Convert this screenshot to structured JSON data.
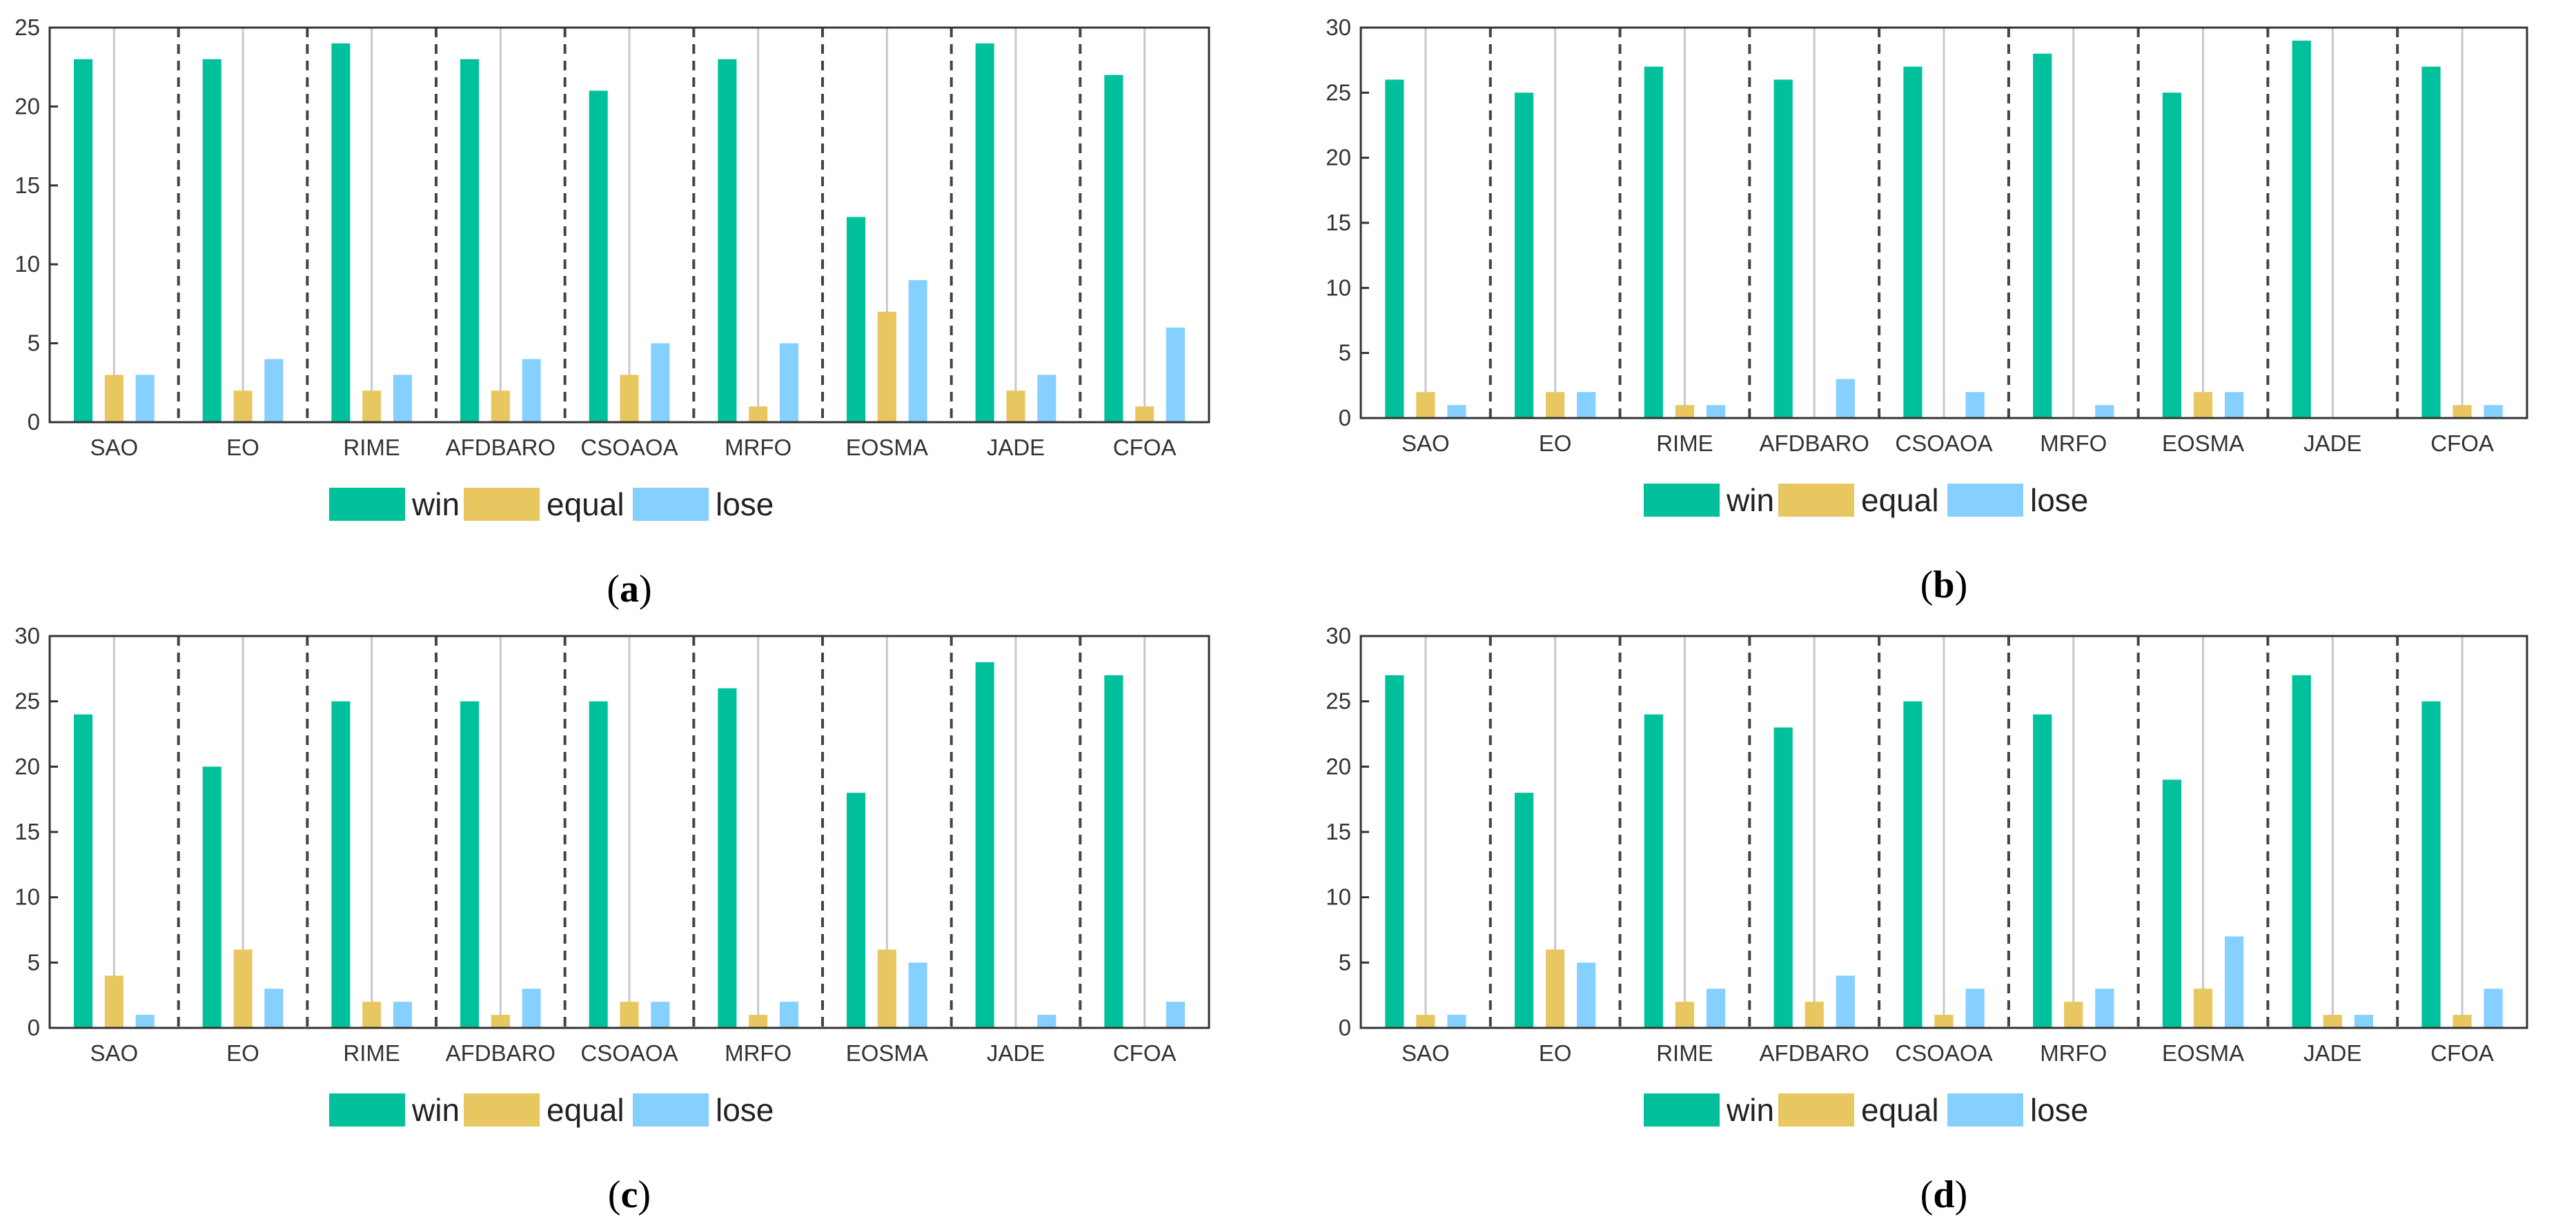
{
  "colors": {
    "win": "#00c19b",
    "equal": "#e8c761",
    "lose": "#85d0ff",
    "axis": "#333333",
    "divider": "#444444",
    "grid": "#c8c8c8"
  },
  "legend": {
    "win": "win",
    "equal": "equal",
    "lose": "lose"
  },
  "chart_data": [
    {
      "type": "bar",
      "panel_label": "a",
      "categories": [
        "SAO",
        "EO",
        "RIME",
        "AFDBARO",
        "CSOAOA",
        "MRFO",
        "EOSMA",
        "JADE",
        "CFOA"
      ],
      "series": [
        {
          "name": "win",
          "values": [
            23,
            23,
            24,
            23,
            21,
            23,
            13,
            24,
            22
          ]
        },
        {
          "name": "equal",
          "values": [
            3,
            2,
            2,
            2,
            3,
            1,
            7,
            2,
            1
          ]
        },
        {
          "name": "lose",
          "values": [
            3,
            4,
            3,
            4,
            5,
            5,
            9,
            3,
            6
          ]
        }
      ],
      "ylim": [
        0,
        25
      ],
      "yticks": [
        0,
        5,
        10,
        15,
        20,
        25
      ],
      "legend_position": "bottom-center"
    },
    {
      "type": "bar",
      "panel_label": "b",
      "categories": [
        "SAO",
        "EO",
        "RIME",
        "AFDBARO",
        "CSOAOA",
        "MRFO",
        "EOSMA",
        "JADE",
        "CFOA"
      ],
      "series": [
        {
          "name": "win",
          "values": [
            26,
            25,
            27,
            26,
            27,
            28,
            25,
            29,
            27
          ]
        },
        {
          "name": "equal",
          "values": [
            2,
            2,
            1,
            0,
            0,
            0,
            2,
            0,
            1
          ]
        },
        {
          "name": "lose",
          "values": [
            1,
            2,
            1,
            3,
            2,
            1,
            2,
            0,
            1
          ]
        }
      ],
      "ylim": [
        0,
        30
      ],
      "yticks": [
        0,
        5,
        10,
        15,
        20,
        25,
        30
      ],
      "legend_position": "bottom-center"
    },
    {
      "type": "bar",
      "panel_label": "c",
      "categories": [
        "SAO",
        "EO",
        "RIME",
        "AFDBARO",
        "CSOAOA",
        "MRFO",
        "EOSMA",
        "JADE",
        "CFOA"
      ],
      "series": [
        {
          "name": "win",
          "values": [
            24,
            20,
            25,
            25,
            25,
            26,
            18,
            28,
            27
          ]
        },
        {
          "name": "equal",
          "values": [
            4,
            6,
            2,
            1,
            2,
            1,
            6,
            0,
            0
          ]
        },
        {
          "name": "lose",
          "values": [
            1,
            3,
            2,
            3,
            2,
            2,
            5,
            1,
            2
          ]
        }
      ],
      "ylim": [
        0,
        30
      ],
      "yticks": [
        0,
        5,
        10,
        15,
        20,
        25,
        30
      ],
      "legend_position": "bottom-center"
    },
    {
      "type": "bar",
      "panel_label": "d",
      "categories": [
        "SAO",
        "EO",
        "RIME",
        "AFDBARO",
        "CSOAOA",
        "MRFO",
        "EOSMA",
        "JADE",
        "CFOA"
      ],
      "series": [
        {
          "name": "win",
          "values": [
            27,
            18,
            24,
            23,
            25,
            24,
            19,
            27,
            25
          ]
        },
        {
          "name": "equal",
          "values": [
            1,
            6,
            2,
            2,
            1,
            2,
            3,
            1,
            1
          ]
        },
        {
          "name": "lose",
          "values": [
            1,
            5,
            3,
            4,
            3,
            3,
            7,
            1,
            3
          ]
        }
      ],
      "ylim": [
        0,
        30
      ],
      "yticks": [
        0,
        5,
        10,
        15,
        20,
        25,
        30
      ],
      "legend_position": "bottom-center"
    }
  ]
}
